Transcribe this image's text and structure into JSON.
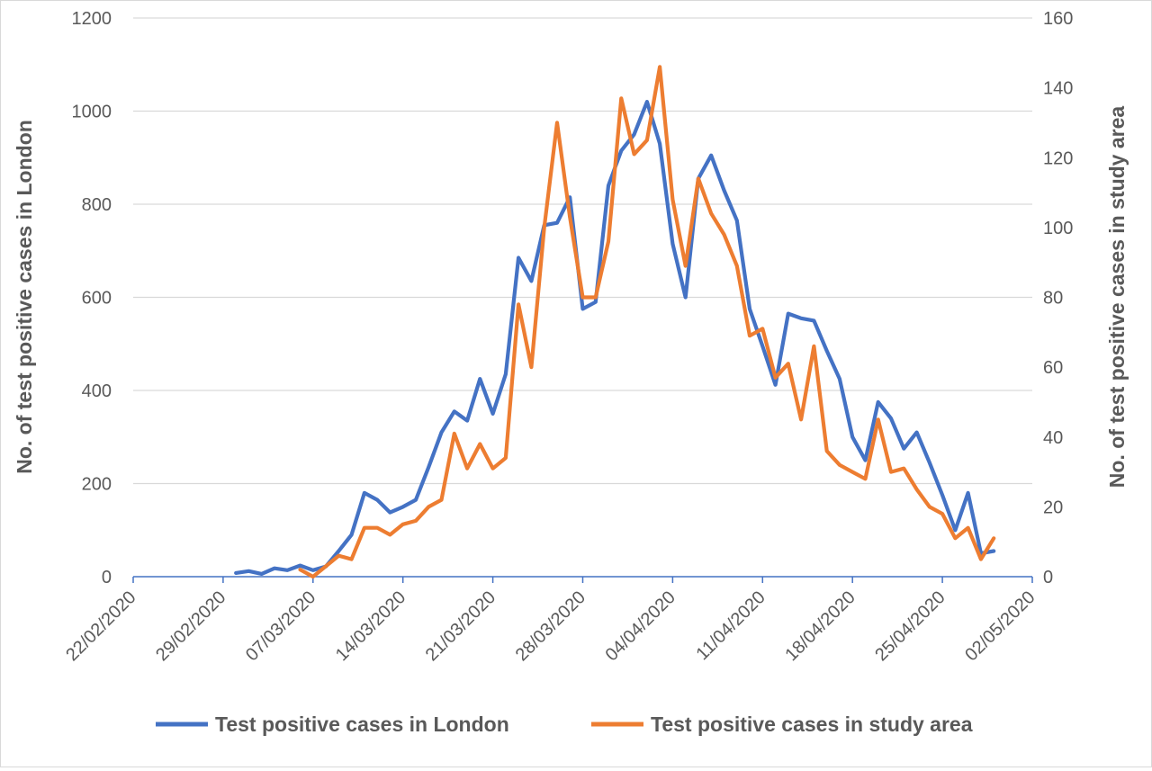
{
  "chart_data": {
    "type": "line",
    "title": "",
    "xlabel": "",
    "ylabel": "No. of test positive cases in London",
    "y2label": "No. of test positive cases in study area",
    "ylim": [
      0,
      1200
    ],
    "y2lim": [
      0,
      160
    ],
    "yticks": [
      "0",
      "200",
      "400",
      "600",
      "800",
      "1000",
      "1200"
    ],
    "y2ticks": [
      "0",
      "20",
      "40",
      "60",
      "80",
      "100",
      "120",
      "140",
      "160"
    ],
    "xticks": [
      "22/02/2020",
      "29/02/2020",
      "07/03/2020",
      "14/03/2020",
      "21/03/2020",
      "28/03/2020",
      "04/04/2020",
      "11/04/2020",
      "18/04/2020",
      "25/04/2020",
      "02/05/2020"
    ],
    "grid": true,
    "legend_position": "bottom",
    "series": [
      {
        "name": "Test positive cases in London",
        "axis": "left",
        "color": "#4472c4",
        "start_date": "01/03/2020",
        "values": [
          8,
          12,
          6,
          18,
          14,
          24,
          14,
          22,
          55,
          90,
          180,
          165,
          138,
          150,
          165,
          235,
          310,
          355,
          335,
          425,
          350,
          435,
          685,
          635,
          755,
          760,
          815,
          575,
          590,
          840,
          915,
          950,
          1020,
          930,
          715,
          600,
          855,
          905,
          830,
          765,
          575,
          495,
          412,
          565,
          555,
          550,
          485,
          425,
          300,
          250,
          375,
          340,
          275,
          310,
          245,
          175,
          100,
          180,
          50,
          55
        ]
      },
      {
        "name": "Test positive cases in study area",
        "axis": "right",
        "color": "#ed7d31",
        "start_date": "06/03/2020",
        "values": [
          2,
          0,
          3,
          6,
          5,
          14,
          14,
          12,
          15,
          16,
          20,
          22,
          41,
          31,
          38,
          31,
          34,
          78,
          60,
          100,
          130,
          103,
          80,
          80,
          96,
          137,
          121,
          125,
          146,
          108,
          89,
          114,
          104,
          98,
          89,
          69,
          71,
          57,
          61,
          45,
          66,
          36,
          32,
          30,
          28,
          45,
          30,
          31,
          25,
          20,
          18,
          11,
          14,
          5,
          11
        ]
      }
    ]
  }
}
